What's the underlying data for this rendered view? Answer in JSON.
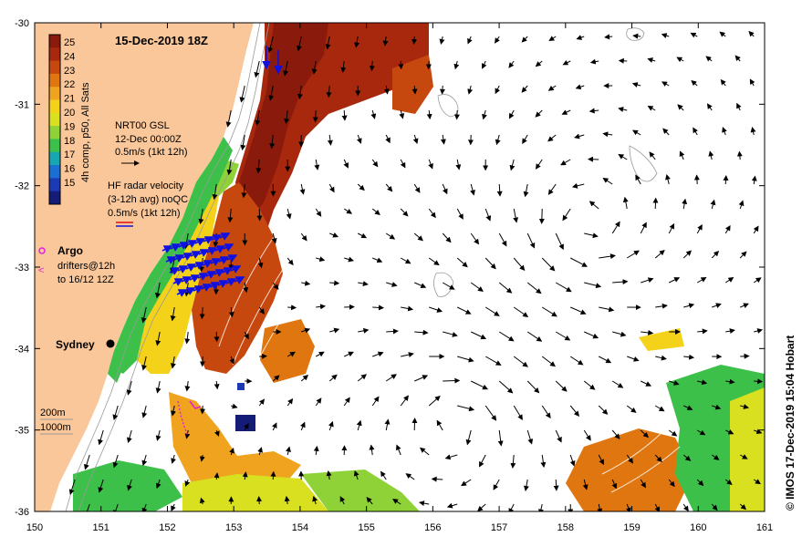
{
  "title": "15-Dec-2019 18Z",
  "credit": "© IMOS 17-Dec-2019 15:04 Hobart",
  "colorbar": {
    "label": "4h comp, p50, All Sats",
    "ticks": [
      "25",
      "24",
      "23",
      "22",
      "21",
      "20",
      "19",
      "18",
      "17",
      "16",
      "15"
    ],
    "colors": [
      "#8a1a0c",
      "#a8280e",
      "#c7480e",
      "#e0760f",
      "#f0a31e",
      "#f4d21a",
      "#d8e020",
      "#8ed238",
      "#3cc04a",
      "#18a6b0",
      "#1c6fd2",
      "#1b3ab4",
      "#141c78"
    ]
  },
  "legend": {
    "nrt_lines": [
      "NRT00 GSL",
      "12-Dec 00:00Z",
      "0.5m/s (1kt 12h)"
    ],
    "hf_lines": [
      "HF radar velocity",
      "(3-12h avg) noQC",
      "0.5m/s (1kt 12h)"
    ],
    "argo_label": "Argo",
    "drifter_lines": [
      "drifters@12h",
      "to 16/12 12Z"
    ],
    "depth_lines": [
      "200m",
      "1000m"
    ],
    "city": "Sydney"
  },
  "axes": {
    "x_ticks": [
      "150",
      "151",
      "152",
      "153",
      "154",
      "155",
      "156",
      "157",
      "158",
      "159",
      "160",
      "161"
    ],
    "y_ticks": [
      "-30",
      "-31",
      "-32",
      "-33",
      "-34",
      "-35",
      "-36"
    ]
  },
  "colors": {
    "land": "#f9c79a",
    "ocean": "#ffffff",
    "hf_radar": "#1010e0",
    "drifter": "#e020e0"
  }
}
